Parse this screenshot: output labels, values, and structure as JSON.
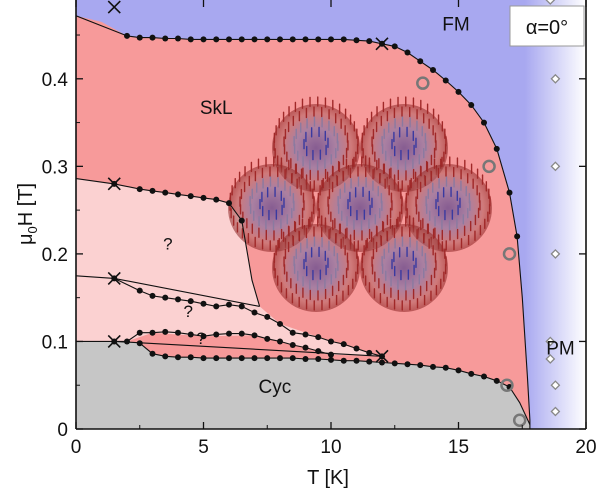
{
  "chart_data": {
    "type": "scatter",
    "title": "",
    "xlabel": "T [K]",
    "ylabel_parts": {
      "main": "μ",
      "sub": "0",
      "tail": "H [T]"
    },
    "xlim": [
      0,
      20
    ],
    "ylim": [
      0,
      0.49
    ],
    "x_ticks": [
      0,
      5,
      10,
      15,
      20
    ],
    "y_ticks": [
      0,
      0.1,
      0.2,
      0.3,
      0.4
    ],
    "y_tick_labels": [
      "0",
      "0.1",
      "0.2",
      "0.3",
      "0.4"
    ],
    "annotation": "α=0°",
    "phases": [
      {
        "label": "FM",
        "x": 14.9,
        "y": 0.455,
        "color": "#a8a8f0"
      },
      {
        "label": "SkL",
        "x": 5.5,
        "y": 0.36,
        "color": "#f79a9a"
      },
      {
        "label": "?",
        "x": 3.6,
        "y": 0.205,
        "color": "#fbd1d1"
      },
      {
        "label": "?",
        "x": 4.4,
        "y": 0.128,
        "color": "#fbd1d1"
      },
      {
        "label": "?",
        "x": 4.9,
        "y": 0.097,
        "color": "#fbd1d1"
      },
      {
        "label": "PM",
        "x": 19.0,
        "y": 0.085,
        "color": "#c8c8f8"
      },
      {
        "label": "Cyc",
        "x": 7.8,
        "y": 0.041,
        "color": "#c6c6c6"
      }
    ],
    "series": [
      {
        "marker": "dot",
        "points": [
          [
            2,
            0.449
          ],
          [
            2.5,
            0.447
          ],
          [
            3,
            0.447
          ],
          [
            3.5,
            0.446
          ],
          [
            4,
            0.446
          ],
          [
            4.5,
            0.445
          ],
          [
            5,
            0.445
          ],
          [
            5.5,
            0.445
          ],
          [
            6,
            0.445
          ],
          [
            6.5,
            0.445
          ],
          [
            7,
            0.445
          ],
          [
            7.5,
            0.445
          ],
          [
            8,
            0.445
          ],
          [
            8.5,
            0.445
          ],
          [
            9,
            0.445
          ],
          [
            9.5,
            0.445
          ],
          [
            10,
            0.445
          ],
          [
            10.5,
            0.445
          ],
          [
            11,
            0.444
          ],
          [
            11.5,
            0.443
          ],
          [
            12,
            0.44
          ],
          [
            12.5,
            0.437
          ],
          [
            13,
            0.43
          ],
          [
            13.5,
            0.42
          ],
          [
            14,
            0.41
          ],
          [
            14.5,
            0.398
          ],
          [
            15,
            0.385
          ],
          [
            15.5,
            0.37
          ],
          [
            16,
            0.35
          ],
          [
            16.5,
            0.32
          ],
          [
            17,
            0.27
          ],
          [
            17.3,
            0.22
          ]
        ]
      },
      {
        "marker": "dot",
        "points": [
          [
            1.5,
            0.28
          ],
          [
            2.5,
            0.274
          ],
          [
            3,
            0.272
          ],
          [
            3.5,
            0.27
          ],
          [
            4,
            0.268
          ],
          [
            4.5,
            0.266
          ],
          [
            5,
            0.264
          ],
          [
            5.5,
            0.262
          ],
          [
            6,
            0.258
          ],
          [
            6.5,
            0.238
          ]
        ]
      },
      {
        "marker": "dot",
        "points": [
          [
            1.5,
            0.172
          ],
          [
            2.5,
            0.158
          ],
          [
            3,
            0.152
          ],
          [
            3.5,
            0.15
          ],
          [
            4,
            0.148
          ],
          [
            4.5,
            0.146
          ],
          [
            5,
            0.143
          ],
          [
            5.5,
            0.14
          ],
          [
            6,
            0.142
          ],
          [
            6.5,
            0.14
          ],
          [
            7,
            0.133
          ],
          [
            7.5,
            0.128
          ],
          [
            8,
            0.12
          ],
          [
            8.5,
            0.11
          ],
          [
            9,
            0.108
          ],
          [
            9.5,
            0.105
          ],
          [
            10,
            0.1
          ],
          [
            10.5,
            0.097
          ],
          [
            11,
            0.092
          ],
          [
            11.5,
            0.087
          ],
          [
            12,
            0.083
          ]
        ]
      },
      {
        "marker": "dot",
        "points": [
          [
            1.5,
            0.1
          ],
          [
            2,
            0.1
          ],
          [
            2.5,
            0.11
          ],
          [
            3,
            0.11
          ],
          [
            3.5,
            0.111
          ],
          [
            4,
            0.11
          ],
          [
            4.5,
            0.108
          ],
          [
            5,
            0.106
          ],
          [
            5.5,
            0.108
          ],
          [
            6,
            0.109
          ],
          [
            6.5,
            0.109
          ],
          [
            7,
            0.107
          ],
          [
            7.5,
            0.103
          ],
          [
            8,
            0.1
          ],
          [
            8.5,
            0.096
          ],
          [
            9,
            0.093
          ],
          [
            9.5,
            0.089
          ],
          [
            10,
            0.085
          ]
        ]
      },
      {
        "marker": "dot",
        "points": [
          [
            2.5,
            0.098
          ],
          [
            3,
            0.086
          ],
          [
            3.5,
            0.083
          ],
          [
            4,
            0.082
          ],
          [
            4.5,
            0.082
          ],
          [
            5,
            0.081
          ],
          [
            5.5,
            0.081
          ],
          [
            6,
            0.081
          ],
          [
            6.5,
            0.081
          ],
          [
            7,
            0.081
          ],
          [
            7.5,
            0.081
          ],
          [
            8,
            0.081
          ],
          [
            8.5,
            0.081
          ],
          [
            9,
            0.08
          ],
          [
            9.5,
            0.08
          ],
          [
            10,
            0.079
          ],
          [
            10.5,
            0.078
          ],
          [
            11,
            0.078
          ],
          [
            11.5,
            0.077
          ],
          [
            12,
            0.076
          ],
          [
            12.5,
            0.075
          ],
          [
            13,
            0.074
          ],
          [
            13.5,
            0.073
          ],
          [
            14,
            0.071
          ],
          [
            14.5,
            0.07
          ],
          [
            15,
            0.067
          ],
          [
            15.5,
            0.063
          ],
          [
            16,
            0.06
          ],
          [
            16.5,
            0.055
          ],
          [
            17,
            0.048
          ]
        ]
      },
      {
        "marker": "cross",
        "points": [
          [
            1.5,
            0.482
          ],
          [
            12,
            0.44
          ],
          [
            1.5,
            0.28
          ],
          [
            1.5,
            0.172
          ],
          [
            1.5,
            0.1
          ],
          [
            12,
            0.083
          ]
        ]
      },
      {
        "marker": "open-circle",
        "points": [
          [
            13.6,
            0.395
          ],
          [
            16.2,
            0.3
          ],
          [
            17,
            0.2
          ],
          [
            16.9,
            0.05
          ],
          [
            17.4,
            0.01
          ]
        ]
      },
      {
        "marker": "diamond",
        "points": [
          [
            18.6,
            0.49
          ],
          [
            18.8,
            0.4
          ],
          [
            18.8,
            0.3
          ],
          [
            18.8,
            0.2
          ],
          [
            18.6,
            0.1
          ],
          [
            18.6,
            0.08
          ],
          [
            18.8,
            0.05
          ],
          [
            18.8,
            0.02
          ]
        ]
      }
    ]
  },
  "colors": {
    "fm": "#a8a8f0",
    "skl": "#f79a9a",
    "unknown": "#fbd1d1",
    "cyc": "#c6c6c6",
    "pm_edge": "#ffffff",
    "open_circle": "#777777",
    "diamond": "#888888"
  },
  "inset_icon": "skyrmion-lattice-illustration"
}
